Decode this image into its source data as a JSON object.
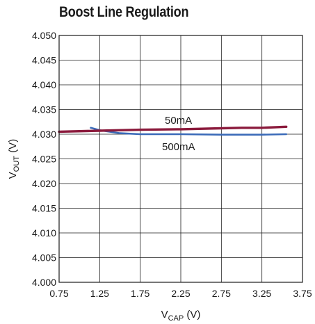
{
  "chart_data": {
    "type": "line",
    "title": "Boost Line Regulation",
    "xlabel": {
      "main": "V",
      "sub": "CAP",
      "unit": " (V)"
    },
    "ylabel": {
      "main": "V",
      "sub": "OUT",
      "unit": " (V)"
    },
    "xlim": [
      0.75,
      3.75
    ],
    "ylim": [
      4.0,
      4.05
    ],
    "x_ticks": [
      "0.75",
      "1.25",
      "1.75",
      "2.25",
      "2.75",
      "3.25",
      "3.75"
    ],
    "y_ticks": [
      "4.000",
      "4.005",
      "4.010",
      "4.015",
      "4.020",
      "4.025",
      "4.030",
      "4.035",
      "4.040",
      "4.045",
      "4.050"
    ],
    "grid": true,
    "series": [
      {
        "name": "50mA",
        "color": "#8b1a3c",
        "x": [
          0.75,
          1.25,
          1.75,
          2.25,
          2.75,
          3.0,
          3.25,
          3.55
        ],
        "y": [
          4.0305,
          4.0307,
          4.0309,
          4.031,
          4.0312,
          4.0313,
          4.0313,
          4.0315
        ]
      },
      {
        "name": "500mA",
        "color": "#3a6ab8",
        "x": [
          1.14,
          1.25,
          1.5,
          1.75,
          2.25,
          2.75,
          3.25,
          3.55
        ],
        "y": [
          4.0313,
          4.0308,
          4.0302,
          4.03,
          4.03,
          4.0299,
          4.0299,
          4.03
        ]
      }
    ]
  }
}
